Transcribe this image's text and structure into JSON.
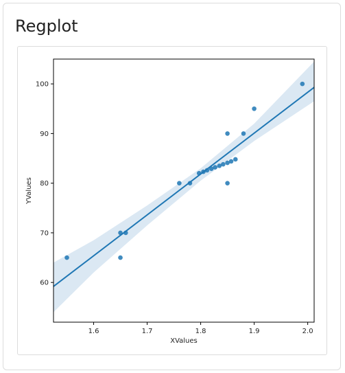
{
  "page": {
    "title": "Regplot"
  },
  "colors": {
    "point": "#1f77b4",
    "line": "#1f77b4",
    "band": "#cfe0ef",
    "axis": "#000000"
  },
  "chart_data": {
    "type": "scatter",
    "title": "",
    "xlabel": "XValues",
    "ylabel": "YValues",
    "xlim": [
      1.525,
      2.012
    ],
    "ylim": [
      52,
      105
    ],
    "xticks": [
      1.6,
      1.7,
      1.8,
      1.9,
      2.0
    ],
    "xtick_labels": [
      "1.6",
      "1.7",
      "1.8",
      "1.9",
      "2.0"
    ],
    "yticks": [
      60,
      70,
      80,
      90,
      100
    ],
    "ytick_labels": [
      "60",
      "70",
      "80",
      "90",
      "100"
    ],
    "grid": false,
    "points": [
      {
        "x": 1.55,
        "y": 65
      },
      {
        "x": 1.65,
        "y": 70
      },
      {
        "x": 1.66,
        "y": 70
      },
      {
        "x": 1.65,
        "y": 65
      },
      {
        "x": 1.76,
        "y": 80
      },
      {
        "x": 1.78,
        "y": 80
      },
      {
        "x": 1.797,
        "y": 82
      },
      {
        "x": 1.805,
        "y": 82.3
      },
      {
        "x": 1.812,
        "y": 82.6
      },
      {
        "x": 1.82,
        "y": 82.9
      },
      {
        "x": 1.827,
        "y": 83.2
      },
      {
        "x": 1.835,
        "y": 83.5
      },
      {
        "x": 1.842,
        "y": 83.8
      },
      {
        "x": 1.85,
        "y": 84.1
      },
      {
        "x": 1.857,
        "y": 84.4
      },
      {
        "x": 1.865,
        "y": 84.8
      },
      {
        "x": 1.85,
        "y": 90
      },
      {
        "x": 1.88,
        "y": 90
      },
      {
        "x": 1.85,
        "y": 80
      },
      {
        "x": 1.9,
        "y": 95
      },
      {
        "x": 1.99,
        "y": 100
      }
    ],
    "regression": {
      "x": [
        1.525,
        2.012
      ],
      "y": [
        59.2,
        99.3
      ]
    },
    "confidence_band": [
      {
        "x": 1.525,
        "lo": 54.0,
        "hi": 64.0
      },
      {
        "x": 1.6,
        "lo": 62.0,
        "hi": 68.5
      },
      {
        "x": 1.7,
        "lo": 71.5,
        "hi": 75.5
      },
      {
        "x": 1.8,
        "lo": 80.5,
        "hi": 83.0
      },
      {
        "x": 1.9,
        "lo": 88.5,
        "hi": 92.0
      },
      {
        "x": 2.012,
        "lo": 96.5,
        "hi": 104.5
      }
    ]
  }
}
